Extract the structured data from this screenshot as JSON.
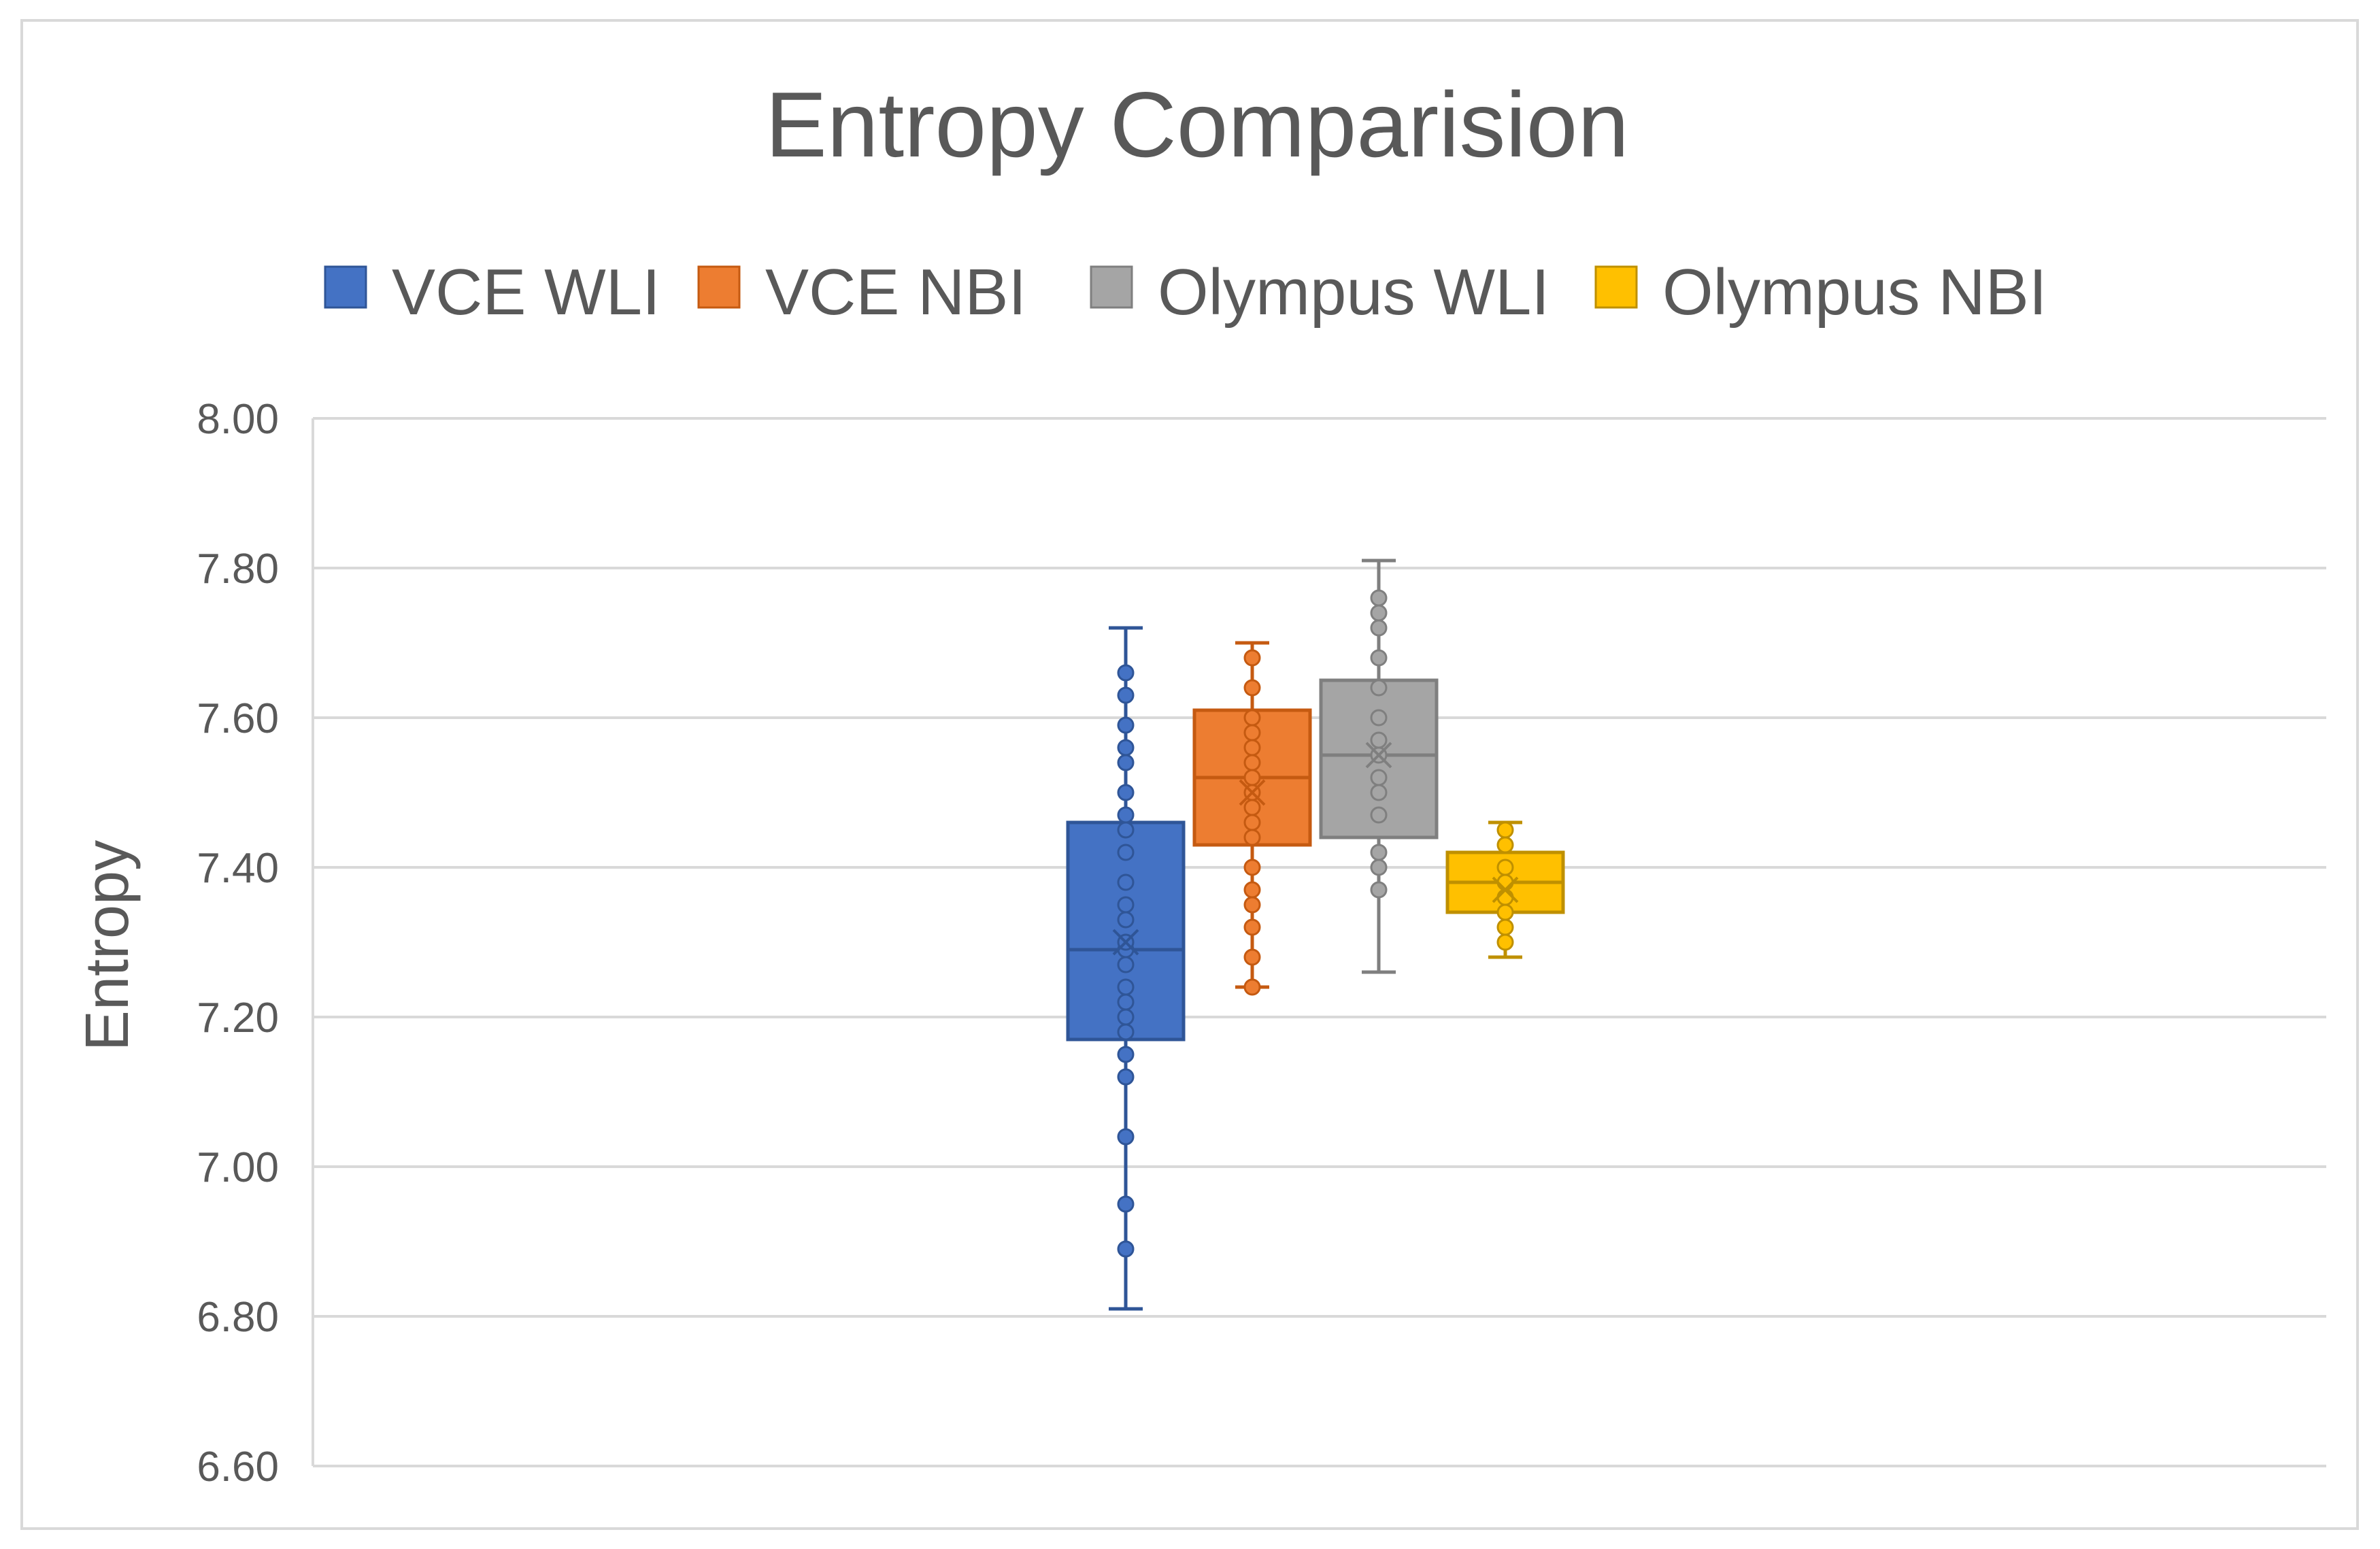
{
  "chart_data": {
    "type": "box",
    "title": "Entropy Comparision",
    "xlabel": "",
    "ylabel": "Entropy",
    "ylim": [
      6.6,
      8.0
    ],
    "yticks": [
      "6.60",
      "6.80",
      "7.00",
      "7.20",
      "7.40",
      "7.60",
      "7.80",
      "8.00"
    ],
    "grid": true,
    "legend_position": "top",
    "series": [
      {
        "name": "VCE WLI",
        "color": "#4472C4",
        "stroke": "#2F5597",
        "min": 6.81,
        "q1": 7.17,
        "median": 7.29,
        "q3": 7.46,
        "max": 7.72,
        "mean": 7.3,
        "points": [
          6.89,
          6.95,
          7.04,
          7.12,
          7.15,
          7.18,
          7.2,
          7.22,
          7.24,
          7.27,
          7.29,
          7.3,
          7.33,
          7.35,
          7.38,
          7.42,
          7.45,
          7.47,
          7.5,
          7.54,
          7.56,
          7.59,
          7.63,
          7.66
        ]
      },
      {
        "name": "VCE NBI",
        "color": "#ED7D31",
        "stroke": "#C55A11",
        "min": 7.24,
        "q1": 7.43,
        "median": 7.52,
        "q3": 7.61,
        "max": 7.7,
        "mean": 7.5,
        "points": [
          7.24,
          7.28,
          7.32,
          7.35,
          7.37,
          7.4,
          7.44,
          7.46,
          7.48,
          7.5,
          7.52,
          7.54,
          7.56,
          7.58,
          7.6,
          7.64,
          7.68
        ]
      },
      {
        "name": "Olympus WLI",
        "color": "#A5A5A5",
        "stroke": "#7F7F7F",
        "min": 7.26,
        "q1": 7.44,
        "median": 7.55,
        "q3": 7.65,
        "max": 7.81,
        "mean": 7.55,
        "points": [
          7.37,
          7.4,
          7.42,
          7.47,
          7.5,
          7.52,
          7.55,
          7.57,
          7.6,
          7.64,
          7.68,
          7.72,
          7.74,
          7.76
        ]
      },
      {
        "name": "Olympus NBI",
        "color": "#FFC000",
        "stroke": "#BF9000",
        "min": 7.28,
        "q1": 7.34,
        "median": 7.38,
        "q3": 7.42,
        "max": 7.46,
        "mean": 7.37,
        "points": [
          7.3,
          7.32,
          7.34,
          7.36,
          7.38,
          7.4,
          7.43,
          7.45
        ]
      }
    ]
  }
}
